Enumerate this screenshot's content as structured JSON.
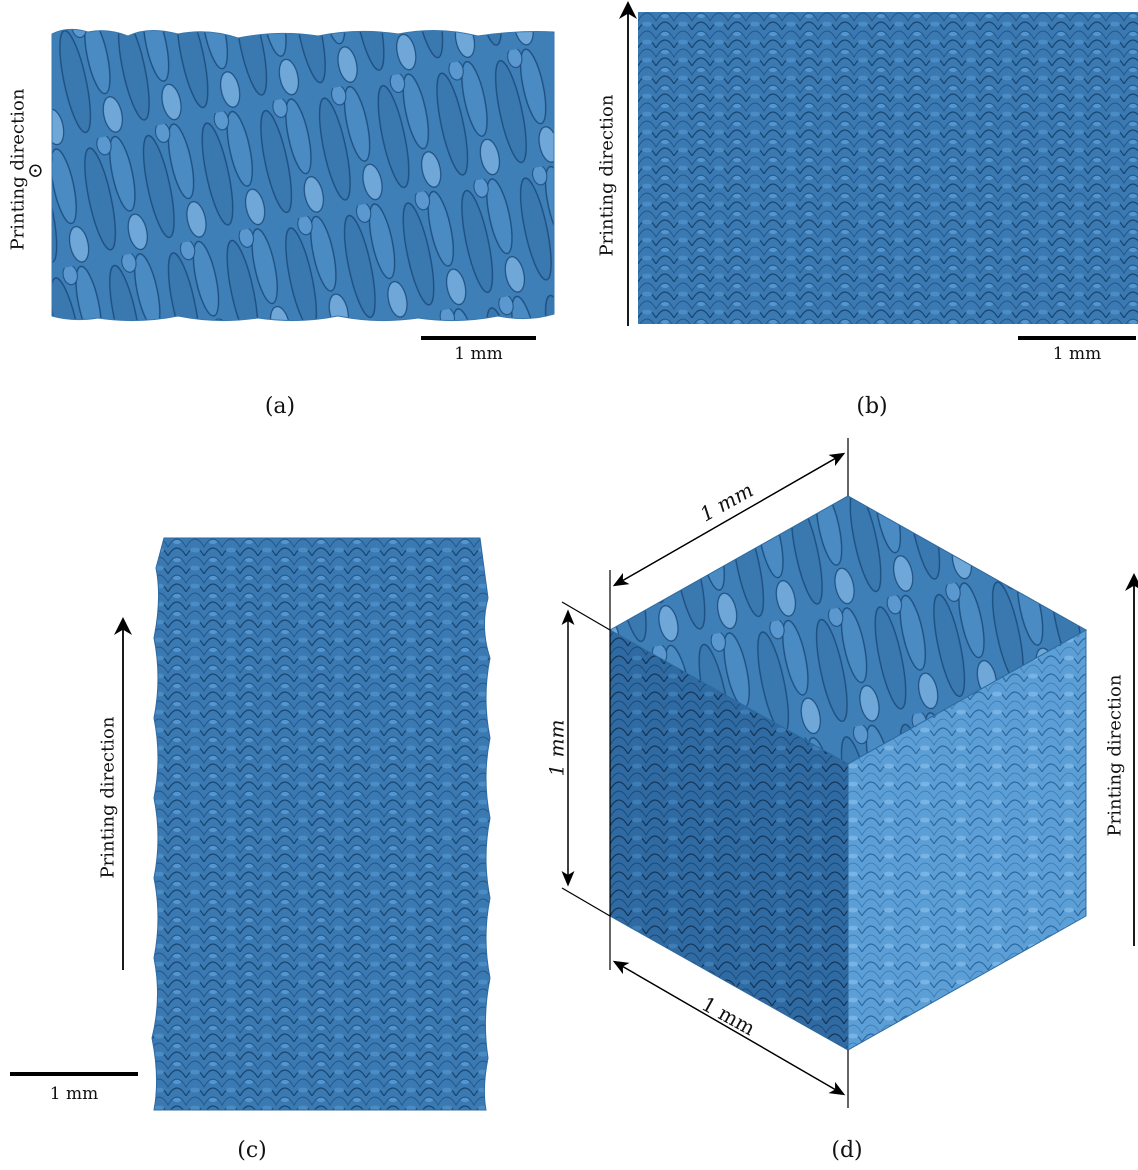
{
  "colors": {
    "grain_base": "#3f7fb8",
    "grain_dark": "#1d4f7f",
    "grain_light": "#6ea7d8",
    "boundary": "#163a5c",
    "cube_right": "#5aa0d6",
    "cube_top": "#3d7db6",
    "cube_left": "#2a6aa5"
  },
  "panels": {
    "a": {
      "caption": "(a)",
      "direction_label": "Printing direction",
      "direction_symbol": "⊙",
      "scale_label": "1 mm"
    },
    "b": {
      "caption": "(b)",
      "direction_label": "Printing direction",
      "scale_label": "1 mm"
    },
    "c": {
      "caption": "(c)",
      "direction_label": "Printing direction",
      "scale_label": "1 mm"
    },
    "d": {
      "caption": "(d)",
      "direction_label": "Printing direction",
      "dim_top": "1 mm",
      "dim_left": "1 mm",
      "dim_bottom": "1 mm"
    }
  }
}
